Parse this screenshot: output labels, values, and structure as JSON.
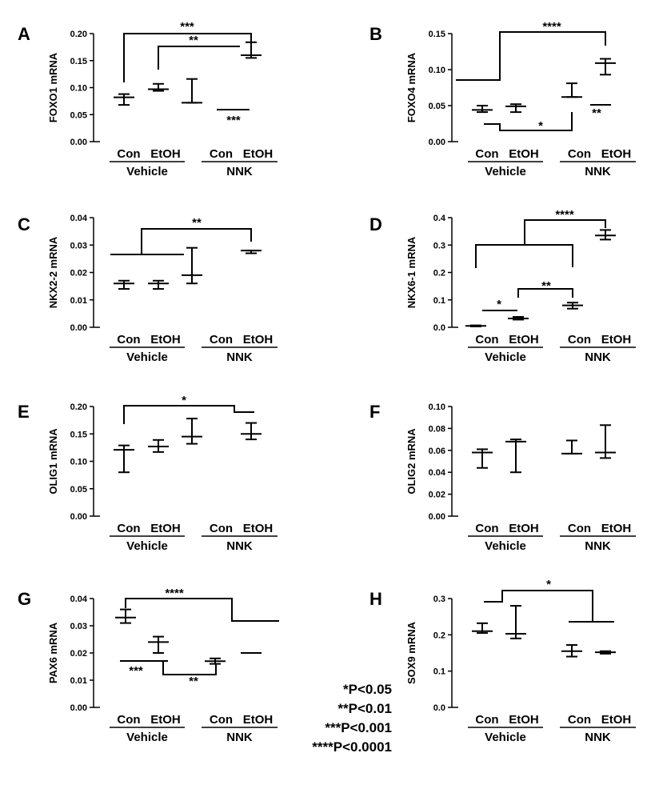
{
  "chart_data": [
    {
      "type": "errorbar",
      "panel_letter": "A",
      "ylabel": "FOXO1 mRNA",
      "ylim": [
        0,
        0.2
      ],
      "yticks": [
        "0.00",
        "0.05",
        "0.10",
        "0.15",
        "0.20"
      ],
      "categories": [
        "Con",
        "EtOH",
        "Con",
        "EtOH"
      ],
      "groups": [
        "Vehicle",
        "NNK"
      ],
      "points": [
        {
          "mean": 0.082,
          "low": 0.068,
          "high": 0.088
        },
        {
          "mean": 0.097,
          "low": 0.094,
          "high": 0.107
        },
        {
          "mean": 0.072,
          "low": 0.072,
          "high": 0.116
        },
        {
          "mean": 0.16,
          "low": 0.155,
          "high": 0.184
        }
      ],
      "annotations": [
        "***",
        "**",
        "***"
      ]
    },
    {
      "type": "errorbar",
      "panel_letter": "B",
      "ylabel": "FOXO4 mRNA",
      "ylim": [
        0,
        0.15
      ],
      "yticks": [
        "0.00",
        "0.05",
        "0.10",
        "0.15"
      ],
      "categories": [
        "Con",
        "EtOH",
        "Con",
        "EtOH"
      ],
      "groups": [
        "Vehicle",
        "NNK"
      ],
      "points": [
        {
          "mean": 0.044,
          "low": 0.041,
          "high": 0.05
        },
        {
          "mean": 0.049,
          "low": 0.041,
          "high": 0.052
        },
        {
          "mean": 0.062,
          "low": 0.062,
          "high": 0.081
        },
        {
          "mean": 0.109,
          "low": 0.093,
          "high": 0.115
        }
      ],
      "annotations": [
        "****",
        "*",
        "**"
      ]
    },
    {
      "type": "errorbar",
      "panel_letter": "C",
      "ylabel": "NKX2-2 mRNA",
      "ylim": [
        0,
        0.04
      ],
      "yticks": [
        "0.00",
        "0.01",
        "0.02",
        "0.03",
        "0.04"
      ],
      "categories": [
        "Con",
        "EtOH",
        "Con",
        "EtOH"
      ],
      "groups": [
        "Vehicle",
        "NNK"
      ],
      "points": [
        {
          "mean": 0.016,
          "low": 0.014,
          "high": 0.017
        },
        {
          "mean": 0.016,
          "low": 0.014,
          "high": 0.017
        },
        {
          "mean": 0.019,
          "low": 0.016,
          "high": 0.029
        },
        {
          "mean": 0.028,
          "low": 0.027,
          "high": 0.028
        }
      ],
      "annotations": [
        "**"
      ]
    },
    {
      "type": "errorbar",
      "panel_letter": "D",
      "ylabel": "NKX6-1 mRNA",
      "ylim": [
        0,
        0.4
      ],
      "yticks": [
        "0.0",
        "0.1",
        "0.2",
        "0.3",
        "0.4"
      ],
      "categories": [
        "Con",
        "EtOH",
        "Con",
        "EtOH"
      ],
      "groups": [
        "Vehicle",
        "NNK"
      ],
      "points": [
        {
          "mean": 0.005,
          "low": 0.003,
          "high": 0.007
        },
        {
          "mean": 0.032,
          "low": 0.028,
          "high": 0.038
        },
        {
          "mean": 0.08,
          "low": 0.068,
          "high": 0.09
        },
        {
          "mean": 0.335,
          "low": 0.32,
          "high": 0.355
        }
      ],
      "annotations": [
        "****",
        "*",
        "**"
      ]
    },
    {
      "type": "errorbar",
      "panel_letter": "E",
      "ylabel": "OLIG1 mRNA",
      "ylim": [
        0,
        0.2
      ],
      "yticks": [
        "0.00",
        "0.05",
        "0.10",
        "0.15",
        "0.20"
      ],
      "categories": [
        "Con",
        "EtOH",
        "Con",
        "EtOH"
      ],
      "groups": [
        "Vehicle",
        "NNK"
      ],
      "points": [
        {
          "mean": 0.121,
          "low": 0.08,
          "high": 0.129
        },
        {
          "mean": 0.127,
          "low": 0.117,
          "high": 0.139
        },
        {
          "mean": 0.145,
          "low": 0.132,
          "high": 0.178
        },
        {
          "mean": 0.15,
          "low": 0.14,
          "high": 0.17
        }
      ],
      "annotations": [
        "*"
      ]
    },
    {
      "type": "errorbar",
      "panel_letter": "F",
      "ylabel": "OLIG2 mRNA",
      "ylim": [
        0,
        0.1
      ],
      "yticks": [
        "0.00",
        "0.02",
        "0.04",
        "0.06",
        "0.08",
        "0.10"
      ],
      "categories": [
        "Con",
        "EtOH",
        "Con",
        "EtOH"
      ],
      "groups": [
        "Vehicle",
        "NNK"
      ],
      "points": [
        {
          "mean": 0.058,
          "low": 0.044,
          "high": 0.061
        },
        {
          "mean": 0.068,
          "low": 0.04,
          "high": 0.07
        },
        {
          "mean": 0.057,
          "low": 0.057,
          "high": 0.069
        },
        {
          "mean": 0.058,
          "low": 0.053,
          "high": 0.083
        }
      ],
      "annotations": []
    },
    {
      "type": "errorbar",
      "panel_letter": "G",
      "ylabel": "PAX6 mRNA",
      "ylim": [
        0,
        0.04
      ],
      "yticks": [
        "0.00",
        "0.01",
        "0.02",
        "0.03",
        "0.04"
      ],
      "categories": [
        "Con",
        "EtOH",
        "Con",
        "EtOH"
      ],
      "groups": [
        "Vehicle",
        "NNK"
      ],
      "points": [
        {
          "mean": 0.033,
          "low": 0.031,
          "high": 0.036
        },
        {
          "mean": 0.024,
          "low": 0.02,
          "high": 0.026
        },
        {
          "mean": 0.017,
          "low": 0.016,
          "high": 0.018
        },
        {
          "mean": 0.02,
          "low": 0.02,
          "high": 0.02
        }
      ],
      "annotations": [
        "****",
        "***",
        "**"
      ]
    },
    {
      "type": "errorbar",
      "panel_letter": "H",
      "ylabel": "SOX9 mRNA",
      "ylim": [
        0,
        0.3
      ],
      "yticks": [
        "0.0",
        "0.1",
        "0.2",
        "0.3"
      ],
      "categories": [
        "Con",
        "EtOH",
        "Con",
        "EtOH"
      ],
      "groups": [
        "Vehicle",
        "NNK"
      ],
      "points": [
        {
          "mean": 0.21,
          "low": 0.205,
          "high": 0.232
        },
        {
          "mean": 0.203,
          "low": 0.19,
          "high": 0.28
        },
        {
          "mean": 0.155,
          "low": 0.14,
          "high": 0.172
        },
        {
          "mean": 0.152,
          "low": 0.148,
          "high": 0.155
        }
      ],
      "annotations": [
        "*"
      ]
    }
  ],
  "legend": {
    "line1": "*P<0.05",
    "line2": "**P<0.01",
    "line3": "***P<0.001",
    "line4": "****P<0.0001"
  }
}
